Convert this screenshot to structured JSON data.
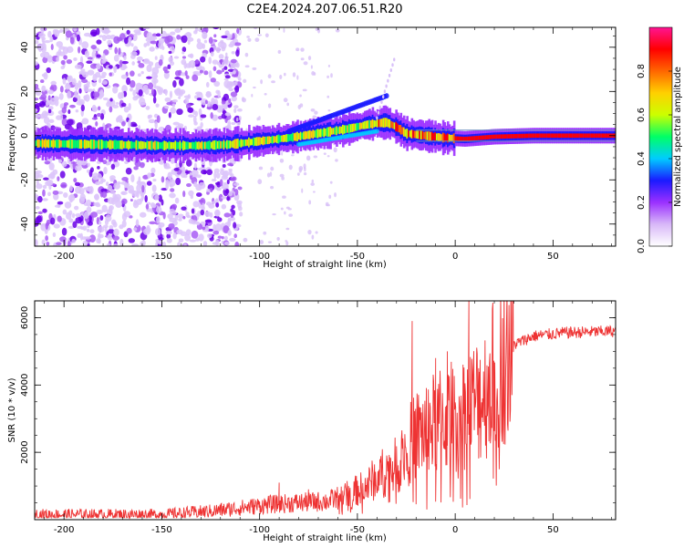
{
  "figure": {
    "title": "C2E4.2024.207.06.51.R20"
  },
  "chart_data": [
    {
      "type": "heatmap",
      "xlabel": "Height of straight line (km)",
      "ylabel": "Frequency (Hz)",
      "xlim": [
        -215,
        82
      ],
      "ylim": [
        -50,
        49
      ],
      "xticks": [
        -200,
        -150,
        -100,
        -50,
        0,
        50
      ],
      "yticks": [
        -40,
        -20,
        0,
        20,
        40
      ],
      "colorbar": {
        "label": "Normalized spectral amplitude",
        "range": [
          0,
          1
        ],
        "ticks": [
          0.0,
          0.2,
          0.4,
          0.6,
          0.8
        ],
        "colormap": [
          "#ffffff",
          "#d8b8f8",
          "#9b30ff",
          "#1a1aff",
          "#00ccff",
          "#00ff66",
          "#ccff00",
          "#ffd000",
          "#ff6600",
          "#ff0000",
          "#ff1493"
        ]
      },
      "ridge": [
        {
          "x": -215,
          "f": -3.5
        },
        {
          "x": -180,
          "f": -4
        },
        {
          "x": -150,
          "f": -4.5
        },
        {
          "x": -130,
          "f": -4.5
        },
        {
          "x": -115,
          "f": -4
        },
        {
          "x": -100,
          "f": -2.5
        },
        {
          "x": -85,
          "f": -1
        },
        {
          "x": -70,
          "f": 1
        },
        {
          "x": -55,
          "f": 3
        },
        {
          "x": -45,
          "f": 5
        },
        {
          "x": -35,
          "f": 6
        },
        {
          "x": -30,
          "f": 4
        },
        {
          "x": -25,
          "f": 1
        },
        {
          "x": -15,
          "f": 0
        },
        {
          "x": -5,
          "f": -1
        },
        {
          "x": 5,
          "f": -1.5
        },
        {
          "x": 20,
          "f": -0.5
        },
        {
          "x": 40,
          "f": 0
        },
        {
          "x": 82,
          "f": 0
        }
      ],
      "noise_region_x": [
        -215,
        -120
      ]
    },
    {
      "type": "line",
      "xlabel": "Height of straight line (km)",
      "ylabel": "SNR (10 * v/v)",
      "xlim": [
        -215,
        82
      ],
      "ylim": [
        0,
        6500
      ],
      "xticks": [
        -200,
        -150,
        -100,
        -50,
        0,
        50
      ],
      "yticks": [
        2000,
        4000,
        6000
      ],
      "series": [
        {
          "color": "#ee3333",
          "trend": [
            {
              "x": -215,
              "y": 150
            },
            {
              "x": -150,
              "y": 150
            },
            {
              "x": -125,
              "y": 250
            },
            {
              "x": -110,
              "y": 350
            },
            {
              "x": -95,
              "y": 450
            },
            {
              "x": -80,
              "y": 500
            },
            {
              "x": -65,
              "y": 550
            },
            {
              "x": -55,
              "y": 750
            },
            {
              "x": -45,
              "y": 1000
            },
            {
              "x": -40,
              "y": 1300
            },
            {
              "x": -30,
              "y": 1600
            },
            {
              "x": -25,
              "y": 2100
            },
            {
              "x": -20,
              "y": 2500
            },
            {
              "x": -12,
              "y": 2800
            },
            {
              "x": -5,
              "y": 3000
            },
            {
              "x": 5,
              "y": 3200
            },
            {
              "x": 10,
              "y": 3500
            },
            {
              "x": 15,
              "y": 3800
            },
            {
              "x": 20,
              "y": 4300
            },
            {
              "x": 25,
              "y": 4800
            },
            {
              "x": 30,
              "y": 5200
            },
            {
              "x": 40,
              "y": 5450
            },
            {
              "x": 55,
              "y": 5550
            },
            {
              "x": 82,
              "y": 5600
            }
          ],
          "spikes": [
            {
              "x": -22,
              "y": 5900
            },
            {
              "x": -10,
              "y": 4800
            },
            {
              "x": 7,
              "y": 6500
            },
            {
              "x": -4,
              "y": 5000
            },
            {
              "x": 12,
              "y": 4500
            },
            {
              "x": -90,
              "y": 1100
            },
            {
              "x": -75,
              "y": 900
            }
          ]
        }
      ]
    }
  ]
}
